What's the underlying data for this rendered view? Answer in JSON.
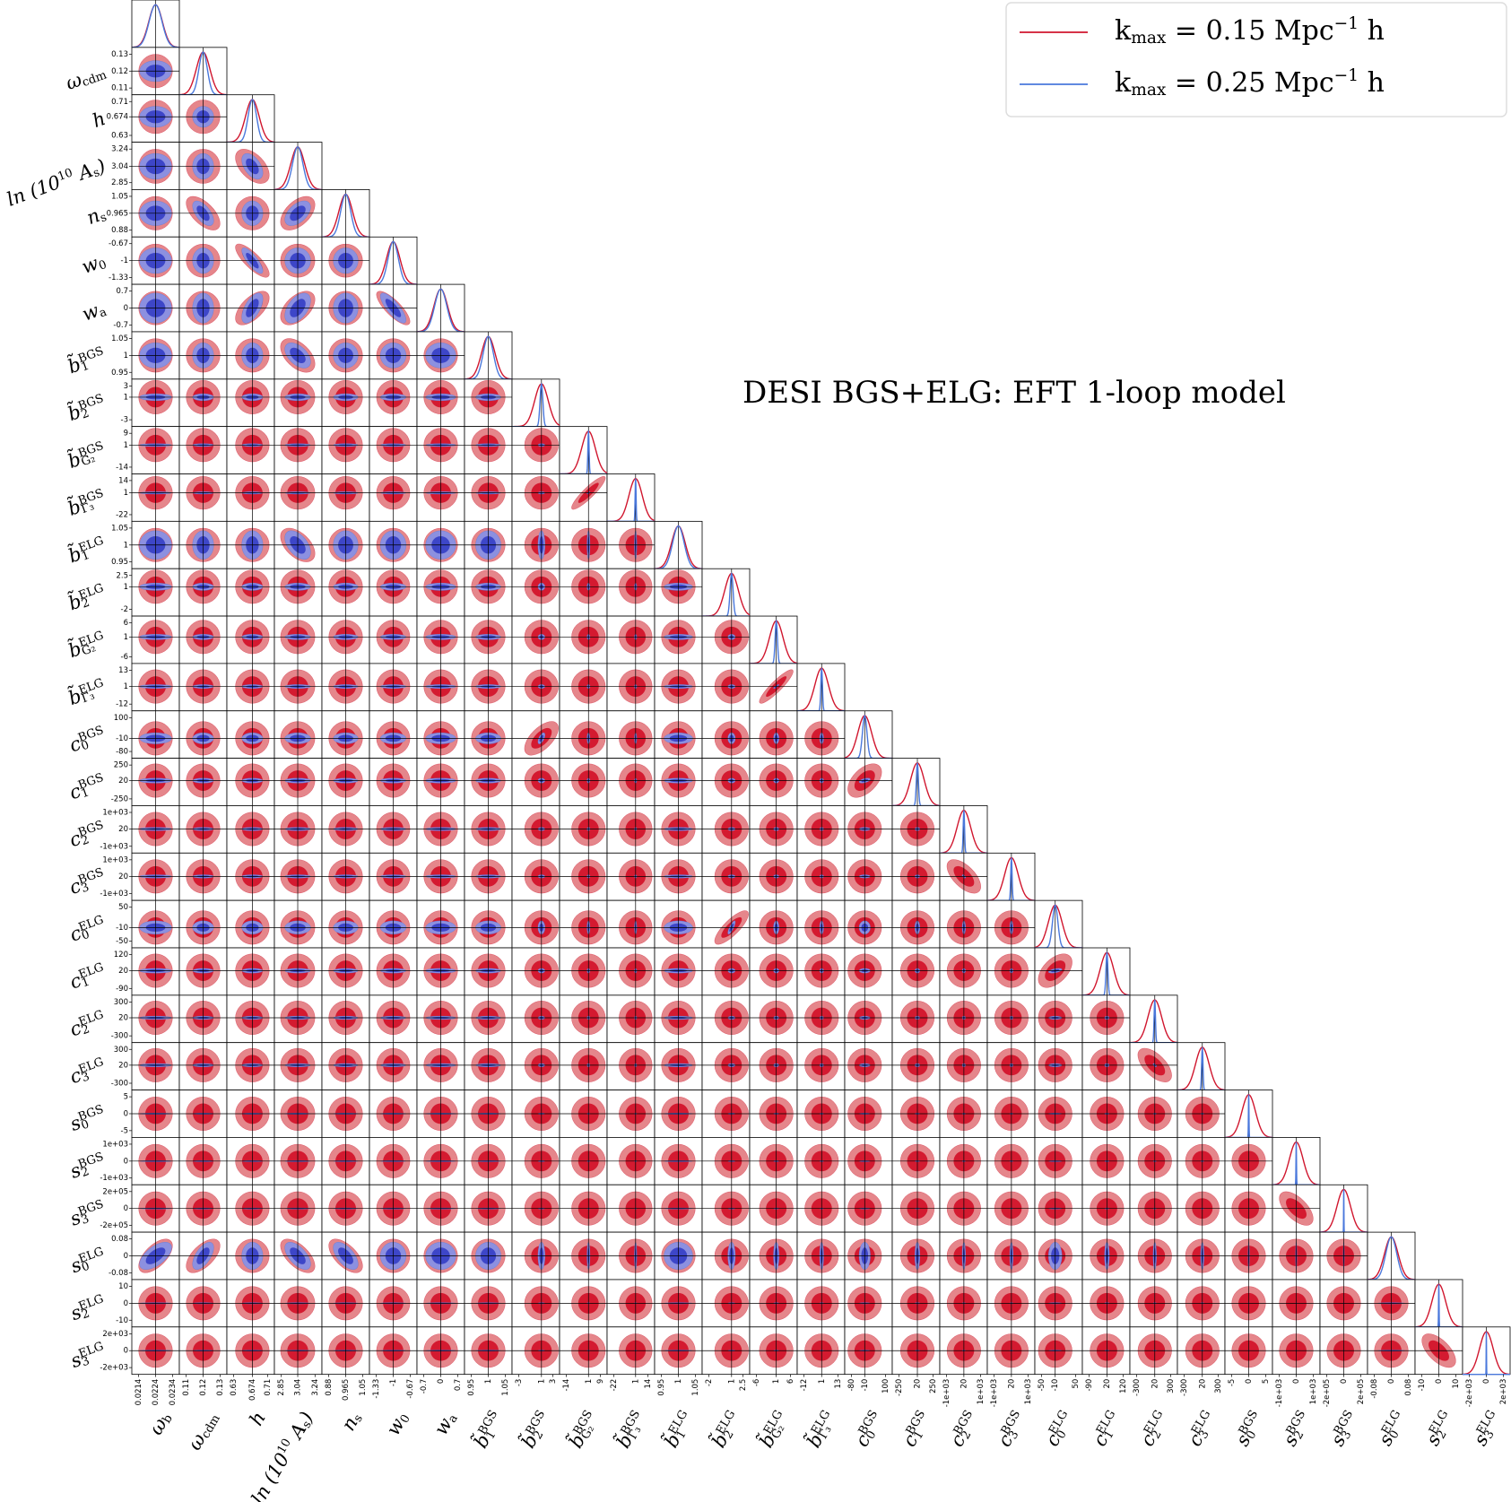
{
  "chart_data": {
    "type": "corner",
    "annotation": "DESI BGS+ELG: EFT 1-loop model",
    "legend": "upper right",
    "params": [
      {
        "label": [
          {
            "text": "ω"
          },
          {
            "sub": "b"
          }
        ],
        "ticks": [
          0.0214,
          0.0224,
          0.0234
        ],
        "lim": [
          0.021,
          0.0238
        ]
      },
      {
        "label": [
          {
            "text": "ω"
          },
          {
            "sub": "cdm"
          }
        ],
        "ticks": [
          0.11,
          0.12,
          0.13
        ],
        "lim": [
          0.106,
          0.134
        ]
      },
      {
        "label": [
          {
            "text": "h"
          }
        ],
        "ticks": [
          0.63,
          0.674,
          0.71
        ],
        "lim": [
          0.614,
          0.726
        ]
      },
      {
        "label": [
          {
            "text": "ln (10"
          },
          {
            "sup": "10"
          },
          {
            "text": " A"
          },
          {
            "sub": "s"
          },
          {
            "text": ")"
          }
        ],
        "ticks": [
          2.85,
          3.04,
          3.24
        ],
        "lim": [
          2.77,
          3.32
        ]
      },
      {
        "label": [
          {
            "text": "n"
          },
          {
            "sub": "s"
          }
        ],
        "ticks": [
          0.88,
          0.965,
          1.05
        ],
        "lim": [
          0.846,
          1.084
        ]
      },
      {
        "label": [
          {
            "text": "w"
          },
          {
            "sub": "0"
          }
        ],
        "ticks": [
          -1.33,
          -1,
          -0.67
        ],
        "lim": [
          -1.46,
          -0.54
        ]
      },
      {
        "label": [
          {
            "text": "w"
          },
          {
            "sub": "a"
          }
        ],
        "ticks": [
          -0.7,
          0,
          0.7
        ],
        "lim": [
          -0.98,
          0.98
        ]
      },
      {
        "label": [
          {
            "text": "b̃"
          },
          {
            "sub": "1"
          },
          {
            "sup": "BGS"
          }
        ],
        "ticks": [
          0.95,
          1,
          1.05
        ],
        "lim": [
          0.93,
          1.07
        ]
      },
      {
        "label": [
          {
            "text": "b̃"
          },
          {
            "sub": "2"
          },
          {
            "sup": "BGS"
          }
        ],
        "ticks": [
          -3,
          1,
          3
        ],
        "lim": [
          -4.2,
          4.2
        ]
      },
      {
        "label": [
          {
            "text": "b̃"
          },
          {
            "sub": "G₂"
          },
          {
            "sup": "BGS"
          }
        ],
        "ticks": [
          -14,
          1,
          9
        ],
        "lim": [
          -18.6,
          13.6
        ]
      },
      {
        "label": [
          {
            "text": "b̃"
          },
          {
            "sub": "Γ₃"
          },
          {
            "sup": "BGS"
          }
        ],
        "ticks": [
          -22,
          1,
          14
        ],
        "lim": [
          -29,
          21
        ]
      },
      {
        "label": [
          {
            "text": "b̃"
          },
          {
            "sub": "1"
          },
          {
            "sup": "ELG"
          }
        ],
        "ticks": [
          0.95,
          1,
          1.05
        ],
        "lim": [
          0.93,
          1.07
        ]
      },
      {
        "label": [
          {
            "text": "b̃"
          },
          {
            "sub": "2"
          },
          {
            "sup": "ELG"
          }
        ],
        "ticks": [
          -2,
          1,
          2.5
        ],
        "lim": [
          -2.9,
          3.4
        ]
      },
      {
        "label": [
          {
            "text": "b̃"
          },
          {
            "sub": "G₂"
          },
          {
            "sup": "ELG"
          }
        ],
        "ticks": [
          -6,
          1,
          6
        ],
        "lim": [
          -8.4,
          8.4
        ]
      },
      {
        "label": [
          {
            "text": "b̃"
          },
          {
            "sub": "Γ₃"
          },
          {
            "sup": "ELG"
          }
        ],
        "ticks": [
          -12,
          1,
          13
        ],
        "lim": [
          -17,
          18
        ]
      },
      {
        "label": [
          {
            "text": "c"
          },
          {
            "sub": "0"
          },
          {
            "sup": "BGS"
          }
        ],
        "ticks": [
          -80,
          -10,
          100
        ],
        "lim": [
          -116,
          136
        ]
      },
      {
        "label": [
          {
            "text": "c"
          },
          {
            "sub": "1"
          },
          {
            "sup": "BGS"
          }
        ],
        "ticks": [
          -250,
          20,
          250
        ],
        "lim": [
          -350,
          350
        ]
      },
      {
        "label": [
          {
            "text": "c"
          },
          {
            "sub": "2"
          },
          {
            "sup": "BGS"
          }
        ],
        "ticks": [
          {
            "value": -1000,
            "label": "-1e+03"
          },
          20,
          {
            "value": 1000,
            "label": "1e+03"
          }
        ],
        "lim": [
          -1400,
          1400
        ]
      },
      {
        "label": [
          {
            "text": "c"
          },
          {
            "sub": "3"
          },
          {
            "sup": "BGS"
          }
        ],
        "ticks": [
          {
            "value": -1000,
            "label": "-1e+03"
          },
          20,
          {
            "value": 1000,
            "label": "1e+03"
          }
        ],
        "lim": [
          -1400,
          1400
        ]
      },
      {
        "label": [
          {
            "text": "c"
          },
          {
            "sub": "0"
          },
          {
            "sup": "ELG"
          }
        ],
        "ticks": [
          -50,
          -10,
          50
        ],
        "lim": [
          -70,
          70
        ]
      },
      {
        "label": [
          {
            "text": "c"
          },
          {
            "sub": "1"
          },
          {
            "sup": "ELG"
          }
        ],
        "ticks": [
          -90,
          20,
          120
        ],
        "lim": [
          -132,
          162
        ]
      },
      {
        "label": [
          {
            "text": "c"
          },
          {
            "sub": "2"
          },
          {
            "sup": "ELG"
          }
        ],
        "ticks": [
          -300,
          20,
          300
        ],
        "lim": [
          -420,
          420
        ]
      },
      {
        "label": [
          {
            "text": "c"
          },
          {
            "sub": "3"
          },
          {
            "sup": "ELG"
          }
        ],
        "ticks": [
          -300,
          20,
          300
        ],
        "lim": [
          -420,
          420
        ]
      },
      {
        "label": [
          {
            "text": "s"
          },
          {
            "sub": "0"
          },
          {
            "sup": "BGS"
          }
        ],
        "ticks": [
          -5,
          0,
          5
        ],
        "lim": [
          -7,
          7
        ]
      },
      {
        "label": [
          {
            "text": "s"
          },
          {
            "sub": "2"
          },
          {
            "sup": "BGS"
          }
        ],
        "ticks": [
          {
            "value": -1000,
            "label": "-1e+03"
          },
          0,
          {
            "value": 1000,
            "label": "1e+03"
          }
        ],
        "lim": [
          -1400,
          1400
        ]
      },
      {
        "label": [
          {
            "text": "s"
          },
          {
            "sub": "3"
          },
          {
            "sup": "BGS"
          }
        ],
        "ticks": [
          {
            "value": -200000,
            "label": "-2e+05"
          },
          0,
          {
            "value": 200000,
            "label": "2e+05"
          }
        ],
        "lim": [
          -280000,
          280000
        ]
      },
      {
        "label": [
          {
            "text": "s"
          },
          {
            "sub": "0"
          },
          {
            "sup": "ELG"
          }
        ],
        "ticks": [
          -0.08,
          0,
          0.08
        ],
        "lim": [
          -0.112,
          0.112
        ]
      },
      {
        "label": [
          {
            "text": "s"
          },
          {
            "sub": "2"
          },
          {
            "sup": "ELG"
          }
        ],
        "ticks": [
          -10,
          0,
          10
        ],
        "lim": [
          -14,
          14
        ]
      },
      {
        "label": [
          {
            "text": "s"
          },
          {
            "sub": "3"
          },
          {
            "sup": "ELG"
          }
        ],
        "ticks": [
          {
            "value": -2000,
            "label": "-2e+03"
          },
          0,
          {
            "value": 2000,
            "label": "2e+03"
          }
        ],
        "lim": [
          -2800,
          2800
        ]
      }
    ],
    "series": [
      {
        "name": [
          {
            "text": "k"
          },
          {
            "sub": "max"
          },
          {
            "text": " = 0.15 Mpc"
          },
          {
            "sup": "−1"
          },
          {
            "text": " h"
          }
        ],
        "color": "#d0162e",
        "fill_outer": "#e5868b",
        "fill_inner": "#d41a30",
        "mean": [
          0.0224,
          0.12,
          0.674,
          3.04,
          0.965,
          -1,
          0,
          1,
          1,
          1,
          1,
          1,
          1,
          1,
          1,
          -10,
          20,
          20,
          20,
          -10,
          20,
          20,
          20,
          0,
          0,
          0,
          0,
          0,
          0
        ],
        "sigma": [
          0.0004,
          0.004,
          0.016,
          0.08,
          0.034,
          0.13,
          0.28,
          0.02,
          1.2,
          4.6,
          7,
          0.02,
          0.9,
          2.4,
          5,
          36,
          100,
          400,
          400,
          20,
          42,
          120,
          120,
          2,
          400,
          80000,
          0.032,
          4,
          800
        ]
      },
      {
        "name": [
          {
            "text": "k"
          },
          {
            "sub": "max"
          },
          {
            "text": " = 0.25 Mpc"
          },
          {
            "sup": "−1"
          },
          {
            "text": " h"
          }
        ],
        "color": "#4a78dc",
        "fill_outer": "#8c90e0",
        "fill_inner": "#3d46c8",
        "mean": [
          0.0224,
          0.12,
          0.674,
          3.04,
          0.965,
          -1,
          0,
          1,
          1,
          1,
          1,
          1,
          1,
          1,
          1,
          -10,
          20,
          20,
          20,
          -10,
          20,
          20,
          20,
          0,
          0,
          0,
          0,
          0,
          0
        ],
        "sigma": [
          0.00038,
          0.0025,
          0.01,
          0.06,
          0.025,
          0.1,
          0.25,
          0.015,
          0.25,
          0.4,
          0.5,
          0.017,
          0.2,
          0.4,
          0.6,
          12,
          15,
          40,
          40,
          8,
          6,
          12,
          12,
          0.08,
          15,
          2000,
          0.026,
          0.15,
          20
        ]
      }
    ],
    "correlations": [
      [
        3,
        2,
        -0.5
      ],
      [
        4,
        1,
        -0.6
      ],
      [
        4,
        3,
        0.5
      ],
      [
        5,
        2,
        -0.8
      ],
      [
        6,
        2,
        0.6
      ],
      [
        6,
        3,
        0.5
      ],
      [
        6,
        5,
        -0.8
      ],
      [
        7,
        3,
        -0.5
      ],
      [
        11,
        3,
        -0.5
      ],
      [
        10,
        9,
        0.9
      ],
      [
        14,
        13,
        0.9
      ],
      [
        15,
        8,
        0.6
      ],
      [
        16,
        15,
        0.5
      ],
      [
        18,
        17,
        -0.6
      ],
      [
        19,
        12,
        0.8
      ],
      [
        20,
        19,
        0.5
      ],
      [
        22,
        21,
        -0.6
      ],
      [
        25,
        24,
        -0.6
      ],
      [
        26,
        0,
        0.6
      ],
      [
        26,
        1,
        0.6
      ],
      [
        26,
        3,
        -0.6
      ],
      [
        26,
        4,
        -0.6
      ],
      [
        28,
        27,
        -0.6
      ]
    ]
  }
}
